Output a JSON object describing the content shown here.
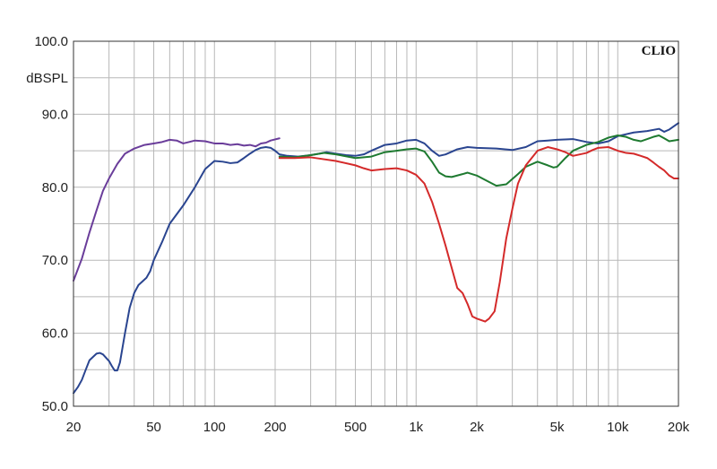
{
  "chart_data": {
    "type": "line",
    "title": "",
    "brand_label": "CLIO",
    "ylabel": "dBSPL",
    "xlabel": "",
    "xscale": "log",
    "xlim": [
      20,
      20000
    ],
    "ylim": [
      50,
      100
    ],
    "grid": true,
    "y_ticks": [
      {
        "value": 100,
        "label": "100.0"
      },
      {
        "value": 90,
        "label": "90.0"
      },
      {
        "value": 80,
        "label": "80.0"
      },
      {
        "value": 70,
        "label": "70.0"
      },
      {
        "value": 60,
        "label": "60.0"
      },
      {
        "value": 50,
        "label": "50.0"
      }
    ],
    "x_ticks": [
      {
        "value": 20,
        "label": "20"
      },
      {
        "value": 50,
        "label": "50"
      },
      {
        "value": 100,
        "label": "100"
      },
      {
        "value": 200,
        "label": "200"
      },
      {
        "value": 500,
        "label": "500"
      },
      {
        "value": 1000,
        "label": "1k"
      },
      {
        "value": 2000,
        "label": "2k"
      },
      {
        "value": 5000,
        "label": "5k"
      },
      {
        "value": 10000,
        "label": "10k"
      },
      {
        "value": 20000,
        "label": "20k"
      }
    ],
    "series": [
      {
        "color": "#6a3d9a",
        "points": [
          [
            20,
            67.2
          ],
          [
            22,
            70.2
          ],
          [
            24,
            73.8
          ],
          [
            26,
            76.8
          ],
          [
            28,
            79.5
          ],
          [
            30,
            81.2
          ],
          [
            33,
            83.2
          ],
          [
            36,
            84.6
          ],
          [
            40,
            85.3
          ],
          [
            45,
            85.8
          ],
          [
            50,
            86.0
          ],
          [
            55,
            86.2
          ],
          [
            60,
            86.5
          ],
          [
            65,
            86.4
          ],
          [
            70,
            86.0
          ],
          [
            75,
            86.2
          ],
          [
            80,
            86.4
          ],
          [
            90,
            86.3
          ],
          [
            100,
            86.0
          ],
          [
            110,
            86.0
          ],
          [
            120,
            85.8
          ],
          [
            130,
            85.9
          ],
          [
            140,
            85.7
          ],
          [
            150,
            85.8
          ],
          [
            160,
            85.6
          ],
          [
            170,
            86.0
          ],
          [
            180,
            86.1
          ],
          [
            190,
            86.4
          ],
          [
            210,
            86.7
          ]
        ]
      },
      {
        "color": "#2a4590",
        "points": [
          [
            20,
            51.8
          ],
          [
            21,
            52.6
          ],
          [
            22,
            53.6
          ],
          [
            23,
            55.0
          ],
          [
            24,
            56.3
          ],
          [
            26,
            57.2
          ],
          [
            27,
            57.3
          ],
          [
            28,
            57.1
          ],
          [
            30,
            56.2
          ],
          [
            31,
            55.5
          ],
          [
            32,
            54.9
          ],
          [
            33,
            54.9
          ],
          [
            34,
            56.0
          ],
          [
            36,
            60.0
          ],
          [
            38,
            63.5
          ],
          [
            40,
            65.5
          ],
          [
            42,
            66.6
          ],
          [
            46,
            67.6
          ],
          [
            48,
            68.5
          ],
          [
            50,
            70.0
          ],
          [
            55,
            72.5
          ],
          [
            60,
            75.0
          ],
          [
            70,
            77.5
          ],
          [
            80,
            80.0
          ],
          [
            90,
            82.5
          ],
          [
            100,
            83.6
          ],
          [
            110,
            83.5
          ],
          [
            120,
            83.3
          ],
          [
            130,
            83.4
          ],
          [
            140,
            84.0
          ],
          [
            150,
            84.6
          ],
          [
            160,
            85.1
          ],
          [
            170,
            85.4
          ],
          [
            180,
            85.5
          ],
          [
            190,
            85.4
          ],
          [
            200,
            85.0
          ],
          [
            210,
            84.5
          ],
          [
            230,
            84.3
          ],
          [
            260,
            84.2
          ],
          [
            300,
            84.4
          ],
          [
            330,
            84.6
          ],
          [
            360,
            84.8
          ],
          [
            400,
            84.6
          ],
          [
            450,
            84.4
          ],
          [
            500,
            84.3
          ],
          [
            550,
            84.5
          ],
          [
            600,
            85.0
          ],
          [
            700,
            85.8
          ],
          [
            800,
            86.0
          ],
          [
            900,
            86.4
          ],
          [
            1000,
            86.5
          ],
          [
            1100,
            86.0
          ],
          [
            1200,
            85.0
          ],
          [
            1300,
            84.3
          ],
          [
            1400,
            84.5
          ],
          [
            1600,
            85.2
          ],
          [
            1800,
            85.5
          ],
          [
            2000,
            85.4
          ],
          [
            2500,
            85.3
          ],
          [
            3000,
            85.1
          ],
          [
            3500,
            85.5
          ],
          [
            4000,
            86.3
          ],
          [
            4500,
            86.4
          ],
          [
            5000,
            86.5
          ],
          [
            6000,
            86.6
          ],
          [
            7000,
            86.2
          ],
          [
            8000,
            86.0
          ],
          [
            9000,
            86.3
          ],
          [
            10000,
            87.0
          ],
          [
            12000,
            87.5
          ],
          [
            14000,
            87.7
          ],
          [
            16000,
            88.0
          ],
          [
            17000,
            87.6
          ],
          [
            18000,
            87.9
          ],
          [
            20000,
            88.8
          ]
        ]
      },
      {
        "color": "#1e7a30",
        "points": [
          [
            210,
            84.2
          ],
          [
            250,
            84.1
          ],
          [
            300,
            84.4
          ],
          [
            350,
            84.7
          ],
          [
            400,
            84.5
          ],
          [
            500,
            84.0
          ],
          [
            600,
            84.2
          ],
          [
            700,
            84.8
          ],
          [
            800,
            85.0
          ],
          [
            900,
            85.2
          ],
          [
            1000,
            85.3
          ],
          [
            1100,
            84.9
          ],
          [
            1200,
            83.5
          ],
          [
            1300,
            82.0
          ],
          [
            1400,
            81.5
          ],
          [
            1500,
            81.4
          ],
          [
            1700,
            81.8
          ],
          [
            1800,
            82.0
          ],
          [
            2000,
            81.6
          ],
          [
            2200,
            81.0
          ],
          [
            2500,
            80.2
          ],
          [
            2800,
            80.4
          ],
          [
            3200,
            81.8
          ],
          [
            3500,
            82.8
          ],
          [
            4000,
            83.5
          ],
          [
            4500,
            83.0
          ],
          [
            4800,
            82.7
          ],
          [
            5000,
            82.8
          ],
          [
            5500,
            84.0
          ],
          [
            6000,
            85.0
          ],
          [
            7000,
            85.8
          ],
          [
            8000,
            86.2
          ],
          [
            9000,
            86.8
          ],
          [
            10000,
            87.1
          ],
          [
            11000,
            86.9
          ],
          [
            12000,
            86.5
          ],
          [
            13000,
            86.3
          ],
          [
            14000,
            86.6
          ],
          [
            15000,
            86.9
          ],
          [
            16000,
            87.1
          ],
          [
            17000,
            86.7
          ],
          [
            18000,
            86.3
          ],
          [
            20000,
            86.5
          ]
        ]
      },
      {
        "color": "#d42a2a",
        "points": [
          [
            210,
            84.0
          ],
          [
            250,
            84.0
          ],
          [
            300,
            84.1
          ],
          [
            400,
            83.6
          ],
          [
            500,
            83.0
          ],
          [
            550,
            82.6
          ],
          [
            600,
            82.3
          ],
          [
            700,
            82.5
          ],
          [
            800,
            82.6
          ],
          [
            900,
            82.3
          ],
          [
            1000,
            81.7
          ],
          [
            1100,
            80.5
          ],
          [
            1200,
            78.0
          ],
          [
            1300,
            75.0
          ],
          [
            1400,
            72.0
          ],
          [
            1500,
            69.0
          ],
          [
            1600,
            66.2
          ],
          [
            1700,
            65.5
          ],
          [
            1800,
            64.0
          ],
          [
            1900,
            62.3
          ],
          [
            2000,
            62.0
          ],
          [
            2100,
            61.8
          ],
          [
            2200,
            61.6
          ],
          [
            2300,
            62.0
          ],
          [
            2450,
            63.0
          ],
          [
            2600,
            67.0
          ],
          [
            2800,
            73.0
          ],
          [
            3000,
            77.0
          ],
          [
            3200,
            80.5
          ],
          [
            3500,
            83.0
          ],
          [
            4000,
            85.0
          ],
          [
            4500,
            85.5
          ],
          [
            5000,
            85.2
          ],
          [
            5500,
            84.8
          ],
          [
            6000,
            84.3
          ],
          [
            7000,
            84.7
          ],
          [
            7500,
            85.1
          ],
          [
            8000,
            85.4
          ],
          [
            9000,
            85.5
          ],
          [
            10000,
            85.0
          ],
          [
            11000,
            84.7
          ],
          [
            12000,
            84.6
          ],
          [
            13000,
            84.3
          ],
          [
            14000,
            84.0
          ],
          [
            15000,
            83.4
          ],
          [
            16000,
            82.8
          ],
          [
            17000,
            82.3
          ],
          [
            18000,
            81.6
          ],
          [
            19000,
            81.2
          ],
          [
            20000,
            81.2
          ]
        ]
      }
    ]
  }
}
